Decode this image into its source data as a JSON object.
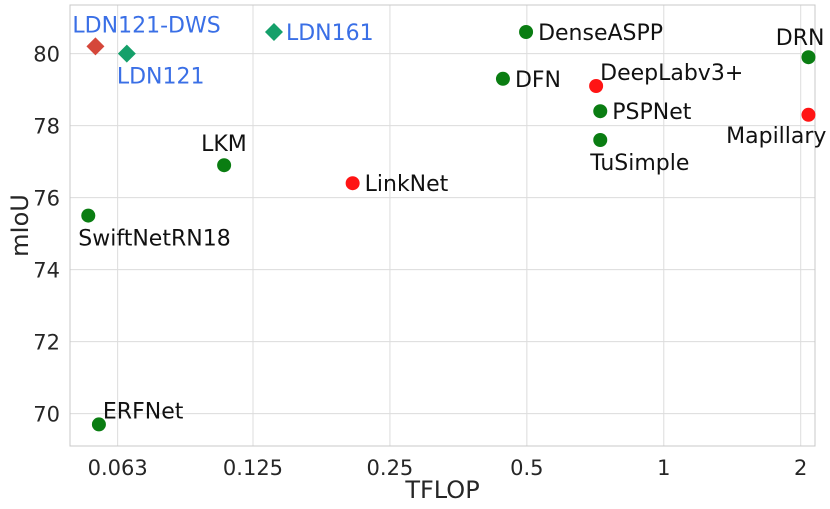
{
  "chart_data": {
    "type": "scatter",
    "xlabel": "TFLOP",
    "ylabel": "mIoU",
    "x_scale": "log2",
    "xlim": [
      0.0495,
      2.15
    ],
    "ylim": [
      69.1,
      81.35
    ],
    "x_ticks": [
      {
        "value": 0.063,
        "label": "0.063"
      },
      {
        "value": 0.125,
        "label": "0.125"
      },
      {
        "value": 0.25,
        "label": "0.25"
      },
      {
        "value": 0.5,
        "label": "0.5"
      },
      {
        "value": 1,
        "label": "1"
      },
      {
        "value": 2,
        "label": "2"
      }
    ],
    "y_ticks": [
      {
        "value": 70,
        "label": "70"
      },
      {
        "value": 72,
        "label": "72"
      },
      {
        "value": 74,
        "label": "74"
      },
      {
        "value": 76,
        "label": "76"
      },
      {
        "value": 78,
        "label": "78"
      },
      {
        "value": 80,
        "label": "80"
      }
    ],
    "grid": true,
    "colors": {
      "green": "#0a7d12",
      "red": "#ff1414",
      "orange_red": "#d5473a",
      "teal": "#15a06a",
      "blue_label": "#3a6fe6",
      "black_label": "#111111"
    },
    "points": [
      {
        "name": "LDN121-DWS",
        "x": 0.0563,
        "y": 80.2,
        "marker": "diamond",
        "color": "#d5473a",
        "label_color": "#3a6fe6",
        "label_pos": "above"
      },
      {
        "name": "LDN121",
        "x": 0.066,
        "y": 80.0,
        "marker": "diamond",
        "color": "#15a06a",
        "label_color": "#3a6fe6",
        "label_pos": "below"
      },
      {
        "name": "LDN161",
        "x": 0.139,
        "y": 80.6,
        "marker": "diamond",
        "color": "#15a06a",
        "label_color": "#3a6fe6",
        "label_pos": "right"
      },
      {
        "name": "DenseASPP",
        "x": 0.498,
        "y": 80.6,
        "marker": "circle",
        "color": "#0a7d12",
        "label_color": "#111111",
        "label_pos": "right"
      },
      {
        "name": "DRN",
        "x": 2.08,
        "y": 79.9,
        "marker": "circle",
        "color": "#0a7d12",
        "label_color": "#111111",
        "label_pos": "above-left"
      },
      {
        "name": "DFN",
        "x": 0.443,
        "y": 79.3,
        "marker": "circle",
        "color": "#0a7d12",
        "label_color": "#111111",
        "label_pos": "right"
      },
      {
        "name": "DeepLabv3+",
        "x": 0.71,
        "y": 79.1,
        "marker": "circle",
        "color": "#ff1414",
        "label_color": "#111111",
        "label_pos": "above-right"
      },
      {
        "name": "PSPNet",
        "x": 0.725,
        "y": 78.4,
        "marker": "circle",
        "color": "#0a7d12",
        "label_color": "#111111",
        "label_pos": "right"
      },
      {
        "name": "Mapillary",
        "x": 2.08,
        "y": 78.3,
        "marker": "circle",
        "color": "#ff1414",
        "label_color": "#111111",
        "label_pos": "below-left"
      },
      {
        "name": "TuSimple",
        "x": 0.725,
        "y": 77.6,
        "marker": "circle",
        "color": "#0a7d12",
        "label_color": "#111111",
        "label_pos": "below"
      },
      {
        "name": "LKM",
        "x": 0.108,
        "y": 76.9,
        "marker": "circle",
        "color": "#0a7d12",
        "label_color": "#111111",
        "label_pos": "above"
      },
      {
        "name": "LinkNet",
        "x": 0.207,
        "y": 76.4,
        "marker": "circle",
        "color": "#ff1414",
        "label_color": "#111111",
        "label_pos": "right"
      },
      {
        "name": "SwiftNetRN18",
        "x": 0.0543,
        "y": 75.5,
        "marker": "circle",
        "color": "#0a7d12",
        "label_color": "#111111",
        "label_pos": "below"
      },
      {
        "name": "ERFNet",
        "x": 0.0573,
        "y": 69.7,
        "marker": "circle",
        "color": "#0a7d12",
        "label_color": "#111111",
        "label_pos": "above-right"
      }
    ]
  }
}
